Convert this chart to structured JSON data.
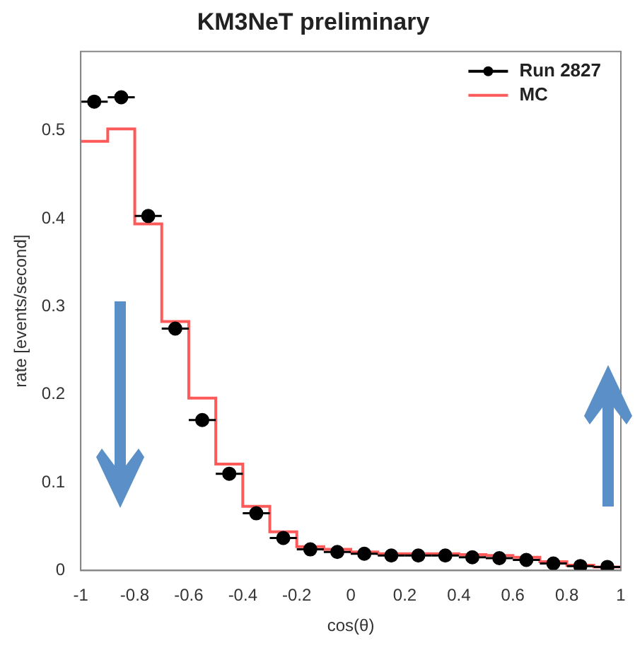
{
  "chart_data": {
    "type": "histogram",
    "title": "KM3NeT preliminary",
    "xlabel": "cos(θ)",
    "ylabel": "rate [events/second]",
    "bins": [
      -1,
      -0.9,
      -0.8,
      -0.7,
      -0.6,
      -0.5,
      -0.4,
      -0.3,
      -0.2,
      -0.1,
      0,
      0.1,
      0.2,
      0.3,
      0.4,
      0.5,
      0.6,
      0.7,
      0.8,
      0.9,
      1
    ],
    "series": [
      {
        "name": "Run 2827",
        "type": "scatter",
        "color": "#000000",
        "marker": "circle",
        "x": [
          -0.95,
          -0.85,
          -0.75,
          -0.65,
          -0.55,
          -0.45,
          -0.35,
          -0.25,
          -0.15,
          -0.05,
          0.05,
          0.15,
          0.25,
          0.35,
          0.45,
          0.55,
          0.65,
          0.75,
          0.85,
          0.95
        ],
        "values": [
          0.533,
          0.538,
          0.403,
          0.275,
          0.171,
          0.11,
          0.065,
          0.037,
          0.024,
          0.021,
          0.019,
          0.017,
          0.017,
          0.017,
          0.015,
          0.014,
          0.012,
          0.008,
          0.005,
          0.004
        ],
        "xerrors": [
          0.05,
          0.05,
          0.05,
          0.05,
          0.05,
          0.05,
          0.05,
          0.05,
          0.05,
          0.05,
          0.05,
          0.05,
          0.05,
          0.05,
          0.05,
          0.05,
          0.05,
          0.05,
          0.05,
          0.05
        ]
      },
      {
        "name": "MC",
        "type": "histogram",
        "color": "#ff5a5a",
        "values": [
          0.488,
          0.502,
          0.394,
          0.283,
          0.196,
          0.121,
          0.073,
          0.044,
          0.027,
          0.024,
          0.021,
          0.019,
          0.019,
          0.019,
          0.018,
          0.017,
          0.015,
          0.01,
          0.006,
          0.004
        ]
      }
    ],
    "xlim": [
      -1,
      1
    ],
    "xticks": [
      -1,
      -0.8,
      -0.6,
      -0.4,
      -0.2,
      0,
      0.2,
      0.4,
      0.6,
      0.8,
      1
    ],
    "ylim": [
      0,
      0.59
    ],
    "yticks": [
      0,
      0.1,
      0.2,
      0.3,
      0.4,
      0.5
    ],
    "grid": false,
    "legend": "top right"
  }
}
